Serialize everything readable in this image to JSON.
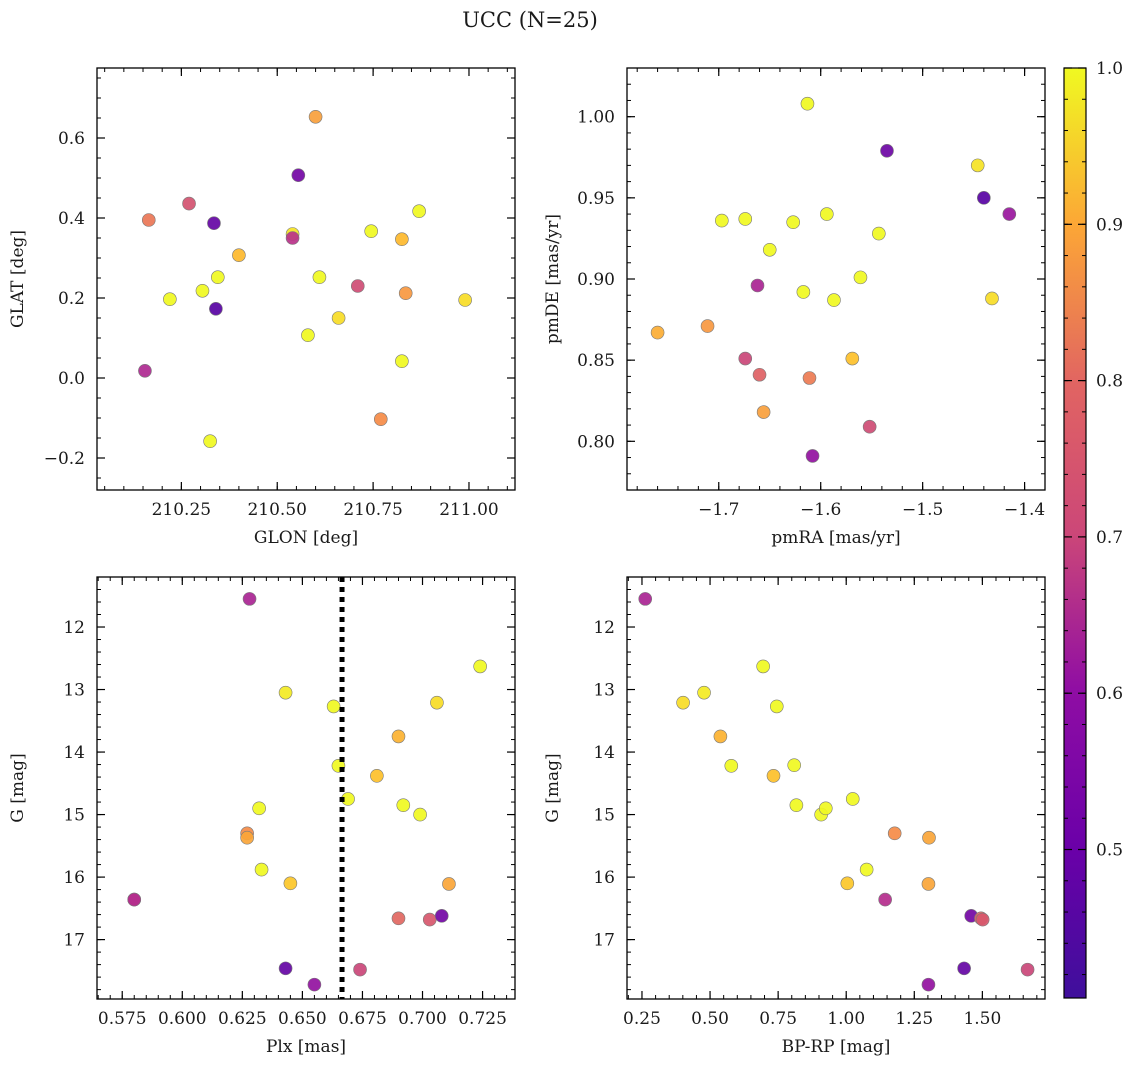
{
  "figure": {
    "title": "UCC (N=25)"
  },
  "colorbar": {
    "cmap": "plasma",
    "range": [
      0.405,
      1.0
    ],
    "ticks": [
      "0.5",
      "0.6",
      "0.7",
      "0.8",
      "0.9",
      "1.0"
    ],
    "tick_values": [
      0.5,
      0.6,
      0.7,
      0.8,
      0.9,
      1.0
    ],
    "minor_step": 0.02
  },
  "chart_data": [
    {
      "type": "scatter",
      "xlabel": "GLON [deg]",
      "ylabel": "GLAT [deg]",
      "xlim": [
        210.03,
        211.12
      ],
      "ylim": [
        -0.28,
        0.775
      ],
      "invert_y": false,
      "xticks": [
        210.25,
        210.5,
        210.75,
        211.0
      ],
      "xtick_labels": [
        "210.25",
        "210.50",
        "210.75",
        "211.00"
      ],
      "xminor": 0.05,
      "yticks": [
        -0.2,
        0.0,
        0.2,
        0.4,
        0.6
      ],
      "ytick_labels": [
        "−0.2",
        "0.0",
        "0.2",
        "0.4",
        "0.6"
      ],
      "yminor": 0.05,
      "vline": null,
      "x": [
        210.165,
        210.155,
        210.27,
        210.335,
        210.22,
        210.305,
        210.345,
        210.34,
        210.4,
        210.325,
        210.555,
        210.6,
        210.54,
        210.54,
        210.61,
        210.58,
        210.66,
        210.745,
        210.71,
        210.825,
        210.835,
        210.87,
        210.825,
        210.77,
        210.99
      ],
      "y": [
        0.395,
        0.018,
        0.436,
        0.387,
        0.197,
        0.218,
        0.252,
        0.173,
        0.307,
        -0.158,
        0.507,
        0.653,
        0.36,
        0.35,
        0.252,
        0.107,
        0.15,
        0.367,
        0.23,
        0.347,
        0.212,
        0.417,
        0.042,
        -0.103,
        0.195
      ],
      "c": [
        0.72,
        0.57,
        0.65,
        0.45,
        0.96,
        0.95,
        0.95,
        0.43,
        0.83,
        0.93,
        0.47,
        0.79,
        0.89,
        0.59,
        0.97,
        0.95,
        0.88,
        0.97,
        0.64,
        0.83,
        0.78,
        0.95,
        0.96,
        0.76,
        0.88
      ]
    },
    {
      "type": "scatter",
      "xlabel": "pmRA [mas/yr]",
      "ylabel": "pmDE [mas/yr]",
      "xlim": [
        -1.79,
        -1.38
      ],
      "ylim": [
        0.77,
        1.03
      ],
      "invert_y": false,
      "xticks": [
        -1.7,
        -1.6,
        -1.5,
        -1.4
      ],
      "xtick_labels": [
        "−1.7",
        "−1.6",
        "−1.5",
        "−1.4"
      ],
      "xminor": 0.02,
      "yticks": [
        0.8,
        0.85,
        0.9,
        0.95,
        1.0
      ],
      "ytick_labels": [
        "0.80",
        "0.85",
        "0.90",
        "0.95",
        "1.00"
      ],
      "yminor": 0.01,
      "vline": null,
      "x": [
        -1.613,
        -1.535,
        -1.446,
        -1.44,
        -1.415,
        -1.697,
        -1.674,
        -1.627,
        -1.594,
        -1.543,
        -1.65,
        -1.662,
        -1.617,
        -1.587,
        -1.561,
        -1.432,
        -1.76,
        -1.711,
        -1.674,
        -1.66,
        -1.611,
        -1.569,
        -1.656,
        -1.552,
        -1.608
      ],
      "y": [
        1.008,
        0.979,
        0.97,
        0.95,
        0.94,
        0.936,
        0.937,
        0.935,
        0.94,
        0.928,
        0.918,
        0.896,
        0.892,
        0.887,
        0.901,
        0.888,
        0.867,
        0.871,
        0.851,
        0.841,
        0.839,
        0.851,
        0.818,
        0.809,
        0.791
      ],
      "c": [
        0.92,
        0.46,
        0.89,
        0.43,
        0.53,
        0.96,
        0.97,
        0.93,
        0.97,
        0.95,
        0.96,
        0.56,
        0.97,
        0.96,
        0.96,
        0.88,
        0.81,
        0.78,
        0.63,
        0.68,
        0.73,
        0.84,
        0.79,
        0.64,
        0.52
      ]
    },
    {
      "type": "scatter",
      "xlabel": "Plx [mas]",
      "ylabel": "G [mag]",
      "xlim": [
        0.5645,
        0.7385
      ],
      "ylim": [
        17.95,
        11.2
      ],
      "invert_y": true,
      "xticks": [
        0.575,
        0.6,
        0.625,
        0.65,
        0.675,
        0.7,
        0.725
      ],
      "xtick_labels": [
        "0.575",
        "0.600",
        "0.625",
        "0.650",
        "0.675",
        "0.700",
        "0.725"
      ],
      "xminor": 0.005,
      "yticks": [
        12,
        13,
        14,
        15,
        16,
        17
      ],
      "ytick_labels": [
        "12",
        "13",
        "14",
        "15",
        "16",
        "17"
      ],
      "yminor": 0.2,
      "vline": 0.6665,
      "x": [
        0.628,
        0.724,
        0.643,
        0.663,
        0.706,
        0.69,
        0.665,
        0.681,
        0.669,
        0.632,
        0.692,
        0.699,
        0.627,
        0.627,
        0.633,
        0.645,
        0.711,
        0.58,
        0.69,
        0.703,
        0.708,
        0.643,
        0.674,
        0.655,
        0.58
      ],
      "y": [
        11.55,
        12.63,
        13.05,
        13.27,
        13.21,
        13.75,
        14.22,
        14.38,
        14.75,
        14.9,
        14.85,
        15.0,
        15.3,
        15.37,
        15.88,
        16.1,
        16.11,
        16.36,
        16.66,
        16.68,
        16.62,
        17.46,
        17.48,
        17.72,
        16.36
      ],
      "c": [
        0.56,
        0.97,
        0.9,
        0.97,
        0.88,
        0.82,
        0.97,
        0.84,
        0.97,
        0.96,
        0.96,
        0.97,
        0.76,
        0.8,
        0.93,
        0.85,
        0.8,
        0.58,
        0.69,
        0.66,
        0.47,
        0.45,
        0.63,
        0.52,
        0.58
      ]
    },
    {
      "type": "scatter",
      "xlabel": "BP-RP [mag]",
      "ylabel": "G [mag]",
      "xlim": [
        0.195,
        1.73
      ],
      "ylim": [
        17.95,
        11.2
      ],
      "invert_y": true,
      "xticks": [
        0.25,
        0.5,
        0.75,
        1.0,
        1.25,
        1.5
      ],
      "xtick_labels": [
        "0.25",
        "0.50",
        "0.75",
        "1.00",
        "1.25",
        "1.50"
      ],
      "xminor": 0.05,
      "yticks": [
        12,
        13,
        14,
        15,
        16,
        17
      ],
      "ytick_labels": [
        "12",
        "13",
        "14",
        "15",
        "16",
        "17"
      ],
      "yminor": 0.2,
      "vline": null,
      "x": [
        0.262,
        0.695,
        0.478,
        0.401,
        0.745,
        0.538,
        0.578,
        0.809,
        0.733,
        1.024,
        0.817,
        0.908,
        0.925,
        1.178,
        1.304,
        1.075,
        1.004,
        1.302,
        1.143,
        1.459,
        1.495,
        1.501,
        1.433,
        1.666,
        1.302
      ],
      "y": [
        11.55,
        12.63,
        13.05,
        13.21,
        13.27,
        13.75,
        14.22,
        14.21,
        14.38,
        14.75,
        14.85,
        15.0,
        14.9,
        15.3,
        15.37,
        15.88,
        16.1,
        16.11,
        16.36,
        16.62,
        16.66,
        16.68,
        17.46,
        17.48,
        17.72
      ],
      "c": [
        0.56,
        0.97,
        0.9,
        0.88,
        0.97,
        0.82,
        0.97,
        0.97,
        0.84,
        0.97,
        0.96,
        0.97,
        0.96,
        0.76,
        0.8,
        0.93,
        0.85,
        0.8,
        0.58,
        0.47,
        0.69,
        0.66,
        0.45,
        0.63,
        0.52
      ]
    }
  ]
}
